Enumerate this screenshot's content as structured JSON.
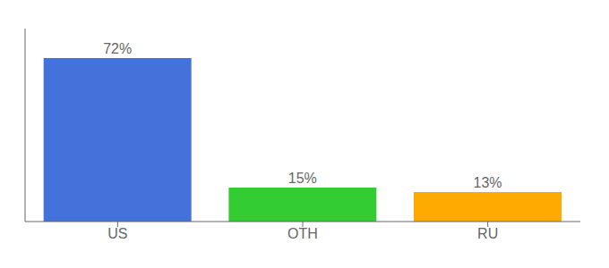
{
  "chart_data": {
    "type": "bar",
    "categories": [
      "US",
      "OTH",
      "RU"
    ],
    "values": [
      72,
      15,
      13
    ],
    "value_labels": [
      "72%",
      "15%",
      "13%"
    ],
    "colors": [
      "#4472db",
      "#33cc33",
      "#ffaa00"
    ],
    "ylim": [
      0,
      85
    ],
    "data_labels": true,
    "tick_labels": "x",
    "grid": false
  }
}
